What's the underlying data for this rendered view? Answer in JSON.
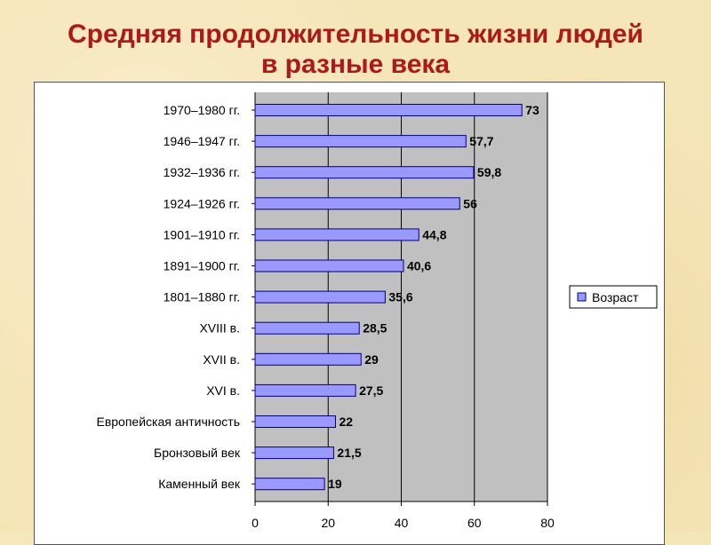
{
  "title_line1": "Средняя продолжительность жизни людей",
  "title_line2": "в разные века",
  "chart_data": {
    "type": "bar",
    "orientation": "horizontal",
    "categories": [
      "1970–1980 гг.",
      "1946–1947 гг.",
      "1932–1936 гг.",
      "1924–1926 гг.",
      "1901–1910 гг.",
      "1891–1900 гг.",
      "1801–1880 гг.",
      "XVIII в.",
      "XVII в.",
      "XVI в.",
      "Европейская античность",
      "Бронзовый век",
      "Каменный век"
    ],
    "series": [
      {
        "name": "Возраст",
        "values": [
          73,
          57.7,
          59.8,
          56,
          44.8,
          40.6,
          35.6,
          28.5,
          29,
          27.5,
          22,
          21.5,
          19
        ],
        "labels": [
          "73",
          "57,7",
          "59,8",
          "56",
          "44,8",
          "40,6",
          "35,6",
          "28,5",
          "29",
          "27,5",
          "22",
          "21,5",
          "19"
        ]
      }
    ],
    "xlim": [
      0,
      80
    ],
    "xticks": [
      "0",
      "20",
      "40",
      "60",
      "80"
    ],
    "legend": "right",
    "grid": true,
    "colors": {
      "bar_fill": "#9999ff",
      "bar_stroke": "#000080",
      "plot_background": "#c0c0c0",
      "title": "#b01818"
    }
  }
}
